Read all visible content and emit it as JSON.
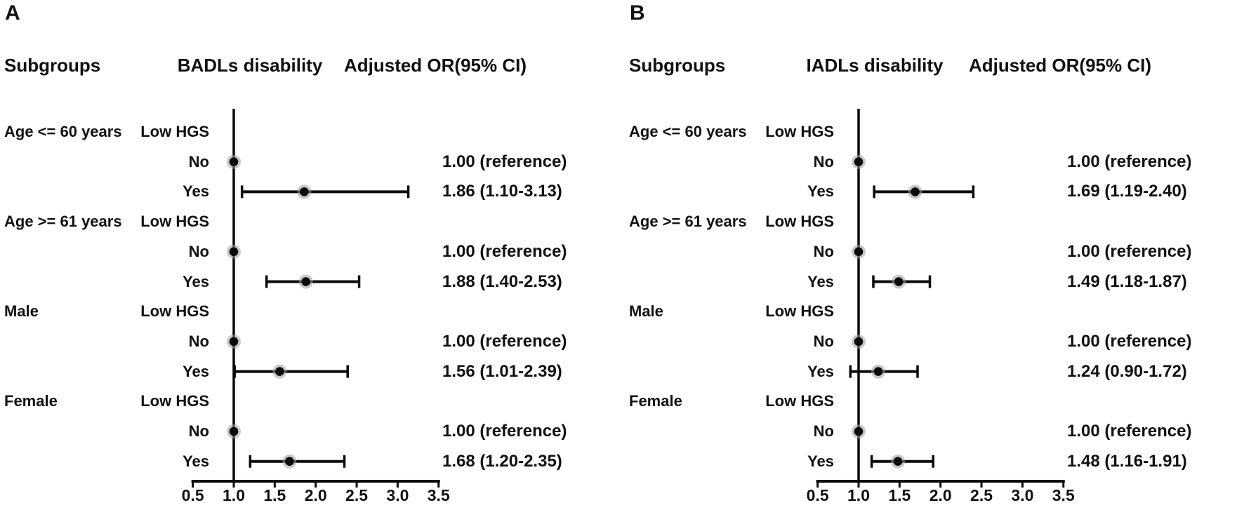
{
  "figure": {
    "background_color": "#ffffff",
    "text_color": "#111111",
    "line_color": "#0a0a0a",
    "marker_color": "#0a0a0a",
    "marker_halo_color": "#9c9c9c"
  },
  "chart_data": [
    {
      "type": "forest",
      "panel_label": "A",
      "subgroups_header": "Subgroups",
      "plot_title": "BADLs disability",
      "or_header": "Adjusted OR(95% CI)",
      "x_axis": {
        "range": [
          0.5,
          3.5
        ],
        "reference_value": 1.0,
        "ticks": [
          0.5,
          1.0,
          1.5,
          2.0,
          2.5,
          3.0,
          3.5
        ],
        "tick_labels": [
          "0.5",
          "1.0",
          "1.5",
          "2.0",
          "2.5",
          "3.0",
          "3.5"
        ]
      },
      "rows": [
        {
          "subgroup": "Age <= 60 years",
          "label": "Low HGS",
          "or": null,
          "ci_low": null,
          "ci_high": null,
          "or_text": ""
        },
        {
          "subgroup": "",
          "label": "No",
          "or": 1.0,
          "ci_low": null,
          "ci_high": null,
          "or_text": "1.00 (reference)"
        },
        {
          "subgroup": "",
          "label": "Yes",
          "or": 1.86,
          "ci_low": 1.1,
          "ci_high": 3.13,
          "or_text": "1.86 (1.10-3.13)"
        },
        {
          "subgroup": "Age >= 61 years",
          "label": "Low HGS",
          "or": null,
          "ci_low": null,
          "ci_high": null,
          "or_text": ""
        },
        {
          "subgroup": "",
          "label": "No",
          "or": 1.0,
          "ci_low": null,
          "ci_high": null,
          "or_text": "1.00 (reference)"
        },
        {
          "subgroup": "",
          "label": "Yes",
          "or": 1.88,
          "ci_low": 1.4,
          "ci_high": 2.53,
          "or_text": "1.88 (1.40-2.53)"
        },
        {
          "subgroup": "Male",
          "label": "Low HGS",
          "or": null,
          "ci_low": null,
          "ci_high": null,
          "or_text": ""
        },
        {
          "subgroup": "",
          "label": "No",
          "or": 1.0,
          "ci_low": null,
          "ci_high": null,
          "or_text": "1.00 (reference)"
        },
        {
          "subgroup": "",
          "label": "Yes",
          "or": 1.56,
          "ci_low": 1.01,
          "ci_high": 2.39,
          "or_text": "1.56 (1.01-2.39)"
        },
        {
          "subgroup": "Female",
          "label": "Low HGS",
          "or": null,
          "ci_low": null,
          "ci_high": null,
          "or_text": ""
        },
        {
          "subgroup": "",
          "label": "No",
          "or": 1.0,
          "ci_low": null,
          "ci_high": null,
          "or_text": "1.00 (reference)"
        },
        {
          "subgroup": "",
          "label": "Yes",
          "or": 1.68,
          "ci_low": 1.2,
          "ci_high": 2.35,
          "or_text": "1.68 (1.20-2.35)"
        }
      ]
    },
    {
      "type": "forest",
      "panel_label": "B",
      "subgroups_header": "Subgroups",
      "plot_title": "IADLs disability",
      "or_header": "Adjusted OR(95% CI)",
      "x_axis": {
        "range": [
          0.5,
          3.5
        ],
        "reference_value": 1.0,
        "ticks": [
          0.5,
          1.0,
          1.5,
          2.0,
          2.5,
          3.0,
          3.5
        ],
        "tick_labels": [
          "0.5",
          "1.0",
          "1.5",
          "2.0",
          "2.5",
          "3.0",
          "3.5"
        ]
      },
      "rows": [
        {
          "subgroup": "Age <= 60 years",
          "label": "Low HGS",
          "or": null,
          "ci_low": null,
          "ci_high": null,
          "or_text": ""
        },
        {
          "subgroup": "",
          "label": "No",
          "or": 1.0,
          "ci_low": null,
          "ci_high": null,
          "or_text": "1.00 (reference)"
        },
        {
          "subgroup": "",
          "label": "Yes",
          "or": 1.69,
          "ci_low": 1.19,
          "ci_high": 2.4,
          "or_text": "1.69 (1.19-2.40)"
        },
        {
          "subgroup": "Age >= 61 years",
          "label": "Low HGS",
          "or": null,
          "ci_low": null,
          "ci_high": null,
          "or_text": ""
        },
        {
          "subgroup": "",
          "label": "No",
          "or": 1.0,
          "ci_low": null,
          "ci_high": null,
          "or_text": "1.00 (reference)"
        },
        {
          "subgroup": "",
          "label": "Yes",
          "or": 1.49,
          "ci_low": 1.18,
          "ci_high": 1.87,
          "or_text": "1.49 (1.18-1.87)"
        },
        {
          "subgroup": "Male",
          "label": "Low HGS",
          "or": null,
          "ci_low": null,
          "ci_high": null,
          "or_text": ""
        },
        {
          "subgroup": "",
          "label": "No",
          "or": 1.0,
          "ci_low": null,
          "ci_high": null,
          "or_text": "1.00 (reference)"
        },
        {
          "subgroup": "",
          "label": "Yes",
          "or": 1.24,
          "ci_low": 0.9,
          "ci_high": 1.72,
          "or_text": "1.24 (0.90-1.72)"
        },
        {
          "subgroup": "Female",
          "label": "Low HGS",
          "or": null,
          "ci_low": null,
          "ci_high": null,
          "or_text": ""
        },
        {
          "subgroup": "",
          "label": "No",
          "or": 1.0,
          "ci_low": null,
          "ci_high": null,
          "or_text": "1.00 (reference)"
        },
        {
          "subgroup": "",
          "label": "Yes",
          "or": 1.48,
          "ci_low": 1.16,
          "ci_high": 1.91,
          "or_text": "1.48 (1.16-1.91)"
        }
      ]
    }
  ]
}
